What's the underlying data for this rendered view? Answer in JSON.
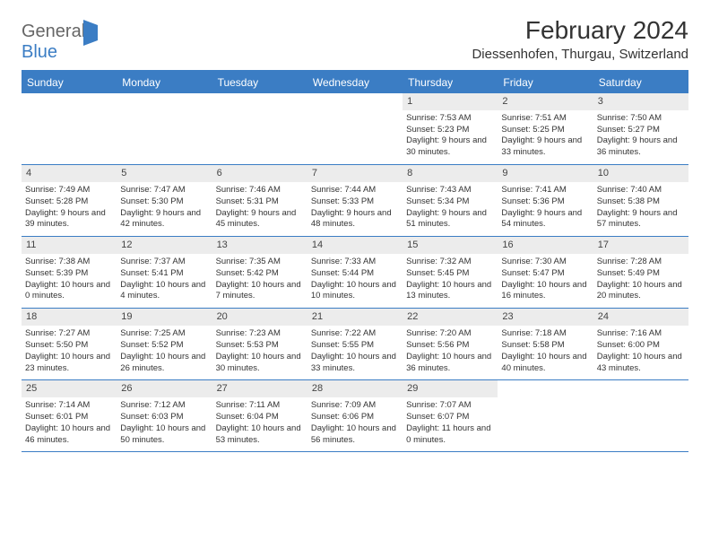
{
  "logo": {
    "part1": "General",
    "part2": "Blue"
  },
  "title": "February 2024",
  "location": "Diessenhofen, Thurgau, Switzerland",
  "colors": {
    "brand": "#3b7dc4",
    "header_bg": "#3b7dc4",
    "header_text": "#ffffff",
    "daynum_bg": "#ececec",
    "text": "#333333",
    "page_bg": "#ffffff"
  },
  "day_names": [
    "Sunday",
    "Monday",
    "Tuesday",
    "Wednesday",
    "Thursday",
    "Friday",
    "Saturday"
  ],
  "layout": {
    "columns": 7,
    "rows": 5,
    "first_day_column_index": 4
  },
  "days": [
    {
      "n": 1,
      "sunrise": "7:53 AM",
      "sunset": "5:23 PM",
      "dl_h": 9,
      "dl_m": 30
    },
    {
      "n": 2,
      "sunrise": "7:51 AM",
      "sunset": "5:25 PM",
      "dl_h": 9,
      "dl_m": 33
    },
    {
      "n": 3,
      "sunrise": "7:50 AM",
      "sunset": "5:27 PM",
      "dl_h": 9,
      "dl_m": 36
    },
    {
      "n": 4,
      "sunrise": "7:49 AM",
      "sunset": "5:28 PM",
      "dl_h": 9,
      "dl_m": 39
    },
    {
      "n": 5,
      "sunrise": "7:47 AM",
      "sunset": "5:30 PM",
      "dl_h": 9,
      "dl_m": 42
    },
    {
      "n": 6,
      "sunrise": "7:46 AM",
      "sunset": "5:31 PM",
      "dl_h": 9,
      "dl_m": 45
    },
    {
      "n": 7,
      "sunrise": "7:44 AM",
      "sunset": "5:33 PM",
      "dl_h": 9,
      "dl_m": 48
    },
    {
      "n": 8,
      "sunrise": "7:43 AM",
      "sunset": "5:34 PM",
      "dl_h": 9,
      "dl_m": 51
    },
    {
      "n": 9,
      "sunrise": "7:41 AM",
      "sunset": "5:36 PM",
      "dl_h": 9,
      "dl_m": 54
    },
    {
      "n": 10,
      "sunrise": "7:40 AM",
      "sunset": "5:38 PM",
      "dl_h": 9,
      "dl_m": 57
    },
    {
      "n": 11,
      "sunrise": "7:38 AM",
      "sunset": "5:39 PM",
      "dl_h": 10,
      "dl_m": 0
    },
    {
      "n": 12,
      "sunrise": "7:37 AM",
      "sunset": "5:41 PM",
      "dl_h": 10,
      "dl_m": 4
    },
    {
      "n": 13,
      "sunrise": "7:35 AM",
      "sunset": "5:42 PM",
      "dl_h": 10,
      "dl_m": 7
    },
    {
      "n": 14,
      "sunrise": "7:33 AM",
      "sunset": "5:44 PM",
      "dl_h": 10,
      "dl_m": 10
    },
    {
      "n": 15,
      "sunrise": "7:32 AM",
      "sunset": "5:45 PM",
      "dl_h": 10,
      "dl_m": 13
    },
    {
      "n": 16,
      "sunrise": "7:30 AM",
      "sunset": "5:47 PM",
      "dl_h": 10,
      "dl_m": 16
    },
    {
      "n": 17,
      "sunrise": "7:28 AM",
      "sunset": "5:49 PM",
      "dl_h": 10,
      "dl_m": 20
    },
    {
      "n": 18,
      "sunrise": "7:27 AM",
      "sunset": "5:50 PM",
      "dl_h": 10,
      "dl_m": 23
    },
    {
      "n": 19,
      "sunrise": "7:25 AM",
      "sunset": "5:52 PM",
      "dl_h": 10,
      "dl_m": 26
    },
    {
      "n": 20,
      "sunrise": "7:23 AM",
      "sunset": "5:53 PM",
      "dl_h": 10,
      "dl_m": 30
    },
    {
      "n": 21,
      "sunrise": "7:22 AM",
      "sunset": "5:55 PM",
      "dl_h": 10,
      "dl_m": 33
    },
    {
      "n": 22,
      "sunrise": "7:20 AM",
      "sunset": "5:56 PM",
      "dl_h": 10,
      "dl_m": 36
    },
    {
      "n": 23,
      "sunrise": "7:18 AM",
      "sunset": "5:58 PM",
      "dl_h": 10,
      "dl_m": 40
    },
    {
      "n": 24,
      "sunrise": "7:16 AM",
      "sunset": "6:00 PM",
      "dl_h": 10,
      "dl_m": 43
    },
    {
      "n": 25,
      "sunrise": "7:14 AM",
      "sunset": "6:01 PM",
      "dl_h": 10,
      "dl_m": 46
    },
    {
      "n": 26,
      "sunrise": "7:12 AM",
      "sunset": "6:03 PM",
      "dl_h": 10,
      "dl_m": 50
    },
    {
      "n": 27,
      "sunrise": "7:11 AM",
      "sunset": "6:04 PM",
      "dl_h": 10,
      "dl_m": 53
    },
    {
      "n": 28,
      "sunrise": "7:09 AM",
      "sunset": "6:06 PM",
      "dl_h": 10,
      "dl_m": 56
    },
    {
      "n": 29,
      "sunrise": "7:07 AM",
      "sunset": "6:07 PM",
      "dl_h": 11,
      "dl_m": 0
    }
  ],
  "labels": {
    "sunrise": "Sunrise:",
    "sunset": "Sunset:",
    "daylight": "Daylight:",
    "hours": "hours",
    "and": "and",
    "minutes": "minutes."
  }
}
